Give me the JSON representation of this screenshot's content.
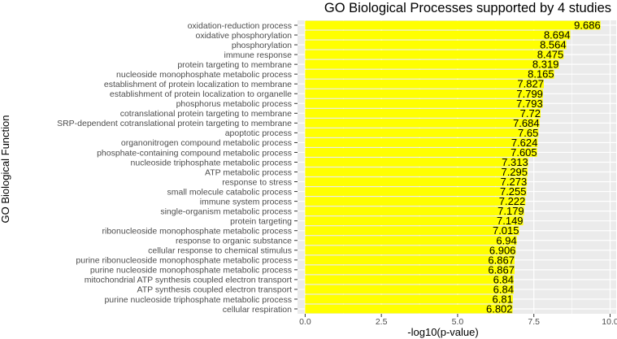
{
  "chart_data": {
    "type": "bar",
    "orientation": "horizontal",
    "title": "GO Biological Processes supported by 4 studies",
    "xlabel": "-log10(p-value)",
    "ylabel": "GO Biological Function",
    "xlim": [
      -0.25,
      10.2
    ],
    "xticks": [
      0.0,
      2.5,
      5.0,
      7.5,
      10.0
    ],
    "xtick_labels": [
      "0.0",
      "2.5",
      "5.0",
      "7.5",
      "10.0"
    ],
    "grid": true,
    "colors": {
      "bar": "#ffff00",
      "panel": "#ebebeb",
      "grid": "#ffffff"
    },
    "categories": [
      "oxidation-reduction process",
      "oxidative phosphorylation",
      "phosphorylation",
      "immune response",
      "protein targeting to membrane",
      "nucleoside monophosphate metabolic process",
      "establishment of protein localization to membrane",
      "establishment of protein localization to organelle",
      "phosphorus metabolic process",
      "cotranslational protein targeting to membrane",
      "SRP-dependent cotranslational protein targeting to membrane",
      "apoptotic process",
      "organonitrogen compound metabolic process",
      "phosphate-containing compound metabolic process",
      "nucleoside triphosphate metabolic process",
      "ATP metabolic process",
      "response to stress",
      "small molecule catabolic process",
      "immune system process",
      "single-organism metabolic process",
      "protein targeting",
      "ribonucleoside monophosphate metabolic process",
      "response to organic substance",
      "cellular response to chemical stimulus",
      "purine ribonucleoside monophosphate metabolic process",
      "purine nucleoside monophosphate metabolic process",
      "mitochondrial ATP synthesis coupled electron transport",
      "ATP synthesis coupled electron transport",
      "purine nucleoside triphosphate metabolic process",
      "cellular respiration"
    ],
    "values": [
      9.686,
      8.694,
      8.564,
      8.475,
      8.319,
      8.165,
      7.827,
      7.799,
      7.793,
      7.72,
      7.684,
      7.65,
      7.624,
      7.605,
      7.313,
      7.295,
      7.273,
      7.255,
      7.222,
      7.179,
      7.149,
      7.015,
      6.94,
      6.906,
      6.867,
      6.867,
      6.84,
      6.84,
      6.81,
      6.802
    ],
    "value_labels": [
      "9.686",
      "8.694",
      "8.564",
      "8.475",
      "8.319",
      "8.165",
      "7.827",
      "7.799",
      "7.793",
      "7.72",
      "7.684",
      "7.65",
      "7.624",
      "7.605",
      "7.313",
      "7.295",
      "7.273",
      "7.255",
      "7.222",
      "7.179",
      "7.149",
      "7.015",
      "6.94",
      "6.906",
      "6.867",
      "6.867",
      "6.84",
      "6.84",
      "6.81",
      "6.802"
    ]
  }
}
